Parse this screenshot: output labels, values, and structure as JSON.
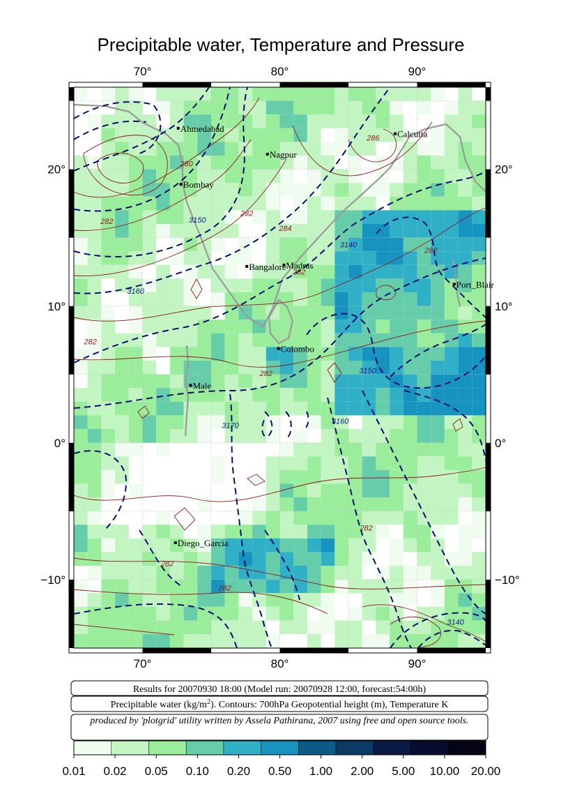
{
  "title": "Precipitable water, Temperature and Pressure",
  "map": {
    "lon_range": [
      65,
      95
    ],
    "lat_range": [
      -15,
      26
    ],
    "lon_ticks": [
      70,
      80,
      90
    ],
    "lat_ticks": [
      -10,
      0,
      10,
      20
    ],
    "lon_tick_labels": [
      "70°",
      "80°",
      "90°"
    ],
    "lat_tick_labels": [
      "−10°",
      "0°",
      "10°",
      "20°"
    ],
    "cities": [
      {
        "name": "Ahmedabad",
        "lon": 72.6,
        "lat": 23.0
      },
      {
        "name": "Nagpur",
        "lon": 79.1,
        "lat": 21.1
      },
      {
        "name": "Calcutta",
        "lon": 88.4,
        "lat": 22.6
      },
      {
        "name": "Bombay",
        "lon": 72.8,
        "lat": 18.9
      },
      {
        "name": "Bangalore",
        "lon": 77.6,
        "lat": 12.9
      },
      {
        "name": "Madras",
        "lon": 80.3,
        "lat": 13.0
      },
      {
        "name": "Port_Blair",
        "lon": 92.7,
        "lat": 11.6
      },
      {
        "name": "Colombo",
        "lon": 79.9,
        "lat": 6.9
      },
      {
        "name": "Male",
        "lon": 73.5,
        "lat": 4.2
      },
      {
        "name": "Diego_Garcia",
        "lon": 72.4,
        "lat": -7.3
      }
    ],
    "contour_labels_temperature": [
      {
        "text": "280",
        "lon": 73.2,
        "lat": 20.2
      },
      {
        "text": "282",
        "lon": 67.4,
        "lat": 16.0
      },
      {
        "text": "282",
        "lon": 77.6,
        "lat": 16.6
      },
      {
        "text": "284",
        "lon": 80.4,
        "lat": 15.5
      },
      {
        "text": "282",
        "lon": 81.4,
        "lat": 12.3
      },
      {
        "text": "286",
        "lon": 86.8,
        "lat": 22.1
      },
      {
        "text": "282",
        "lon": 91.0,
        "lat": 13.9
      },
      {
        "text": "282",
        "lon": 66.2,
        "lat": 7.2
      },
      {
        "text": "282",
        "lon": 79.0,
        "lat": 4.9
      },
      {
        "text": "282",
        "lon": 71.8,
        "lat": -9.0
      },
      {
        "text": "282",
        "lon": 76.0,
        "lat": -10.8
      },
      {
        "text": "282",
        "lon": 86.3,
        "lat": -6.4
      }
    ],
    "contour_labels_height": [
      {
        "text": "3150",
        "lon": 74.0,
        "lat": 16.1
      },
      {
        "text": "3140",
        "lon": 85.0,
        "lat": 14.3
      },
      {
        "text": "3160",
        "lon": 69.5,
        "lat": 10.9
      },
      {
        "text": "3150",
        "lon": 86.4,
        "lat": 5.1
      },
      {
        "text": "3170",
        "lon": 76.4,
        "lat": 1.1
      },
      {
        "text": "3160",
        "lon": 84.4,
        "lat": 1.4
      },
      {
        "text": "3140",
        "lon": 92.8,
        "lat": -13.3
      }
    ]
  },
  "info_boxes": {
    "results": "Results for 20070930 18:00 (Model run: 20070928 12:00, forecast:54:00h)",
    "legend_prefix": "Precipitable water (kg/m",
    "legend_sup": "2",
    "legend_suffix": ").  Contours: 700hPa Geopotential height (m), Temperature K",
    "credit": "produced by 'plotgrid' utility written by Assela Pathirana, 2007 using free and open source tools."
  },
  "colorbar": {
    "labels": [
      "0.01",
      "0.02",
      "0.05",
      "0.10",
      "0.20",
      "0.50",
      "1.00",
      "2.00",
      "5.00",
      "10.00",
      "20.00"
    ],
    "colors": [
      "#effcef",
      "#c2f5c2",
      "#9aed9a",
      "#66cdaa",
      "#2fb0c6",
      "#1793bf",
      "#0a5c87",
      "#0b3a64",
      "#0a1b45",
      "#080c2e",
      "#040414"
    ]
  },
  "colors": {
    "temperature_contour": "#8b1a1a",
    "height_contour": "#1a1a8b",
    "coastline": "#9a9a9a",
    "grid": "#bbbbbb"
  }
}
